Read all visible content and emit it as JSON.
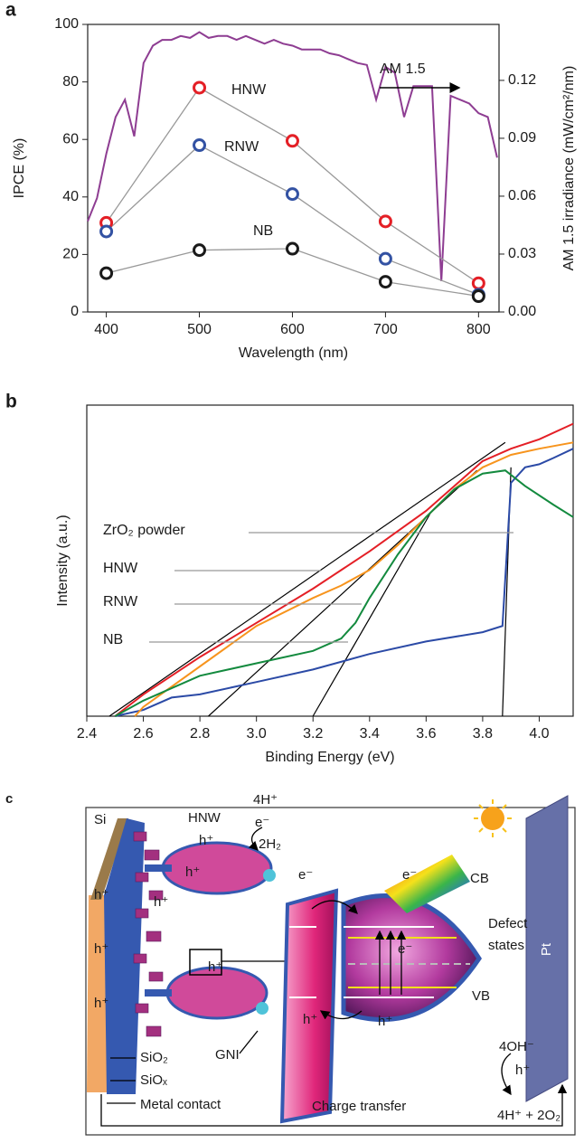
{
  "chart_data": [
    {
      "type": "line",
      "panel_label": "a",
      "x": [
        400,
        500,
        600,
        700,
        800
      ],
      "xlim": [
        380,
        822
      ],
      "xticks": [
        400,
        500,
        600,
        700,
        800
      ],
      "ylim": [
        0,
        100
      ],
      "yticks": [
        0,
        20,
        40,
        60,
        80,
        100
      ],
      "y2lim": [
        0,
        0.149
      ],
      "y2ticks": [
        {
          "value": 0,
          "label": "0.00"
        },
        0.03,
        0.06,
        0.09,
        0.12
      ],
      "xlabel": "Wavelength (nm)",
      "ylabel": "IPCE (%)",
      "y2label": "AM 1.5 irradiance (mW/cm²/nm)",
      "connector_color": "#999999",
      "series": [
        {
          "name": "AM 1.5",
          "color": "#8e3d92",
          "axis": "y2",
          "marker": "none",
          "x": [
            380,
            390,
            400,
            410,
            420,
            430,
            440,
            450,
            460,
            470,
            480,
            490,
            500,
            510,
            520,
            530,
            540,
            550,
            560,
            570,
            580,
            590,
            600,
            610,
            620,
            630,
            640,
            650,
            660,
            670,
            680,
            690,
            700,
            710,
            720,
            730,
            740,
            750,
            760,
            770,
            780,
            790,
            800,
            810,
            820
          ],
          "values": [
            0.047,
            0.059,
            0.082,
            0.101,
            0.11,
            0.091,
            0.129,
            0.138,
            0.141,
            0.141,
            0.143,
            0.142,
            0.145,
            0.142,
            0.143,
            0.143,
            0.141,
            0.143,
            0.141,
            0.139,
            0.141,
            0.139,
            0.138,
            0.136,
            0.136,
            0.136,
            0.134,
            0.133,
            0.131,
            0.129,
            0.128,
            0.11,
            0.127,
            0.124,
            0.101,
            0.117,
            0.117,
            0.117,
            0.016,
            0.112,
            0.11,
            0.108,
            0.103,
            0.101,
            0.08
          ]
        },
        {
          "name": "HNW",
          "color": "#e41f26",
          "marker": "circle",
          "values": [
            31,
            78,
            59.5,
            31.5,
            10
          ]
        },
        {
          "name": "RNW",
          "color": "#3352a3",
          "marker": "circle",
          "values": [
            28,
            58,
            41,
            18.5,
            6
          ]
        },
        {
          "name": "NB",
          "color": "#1a1a1a",
          "marker": "circle",
          "values": [
            13.5,
            21.5,
            22,
            10.5,
            5.5
          ]
        }
      ]
    },
    {
      "type": "line",
      "panel_label": "b",
      "xlim": [
        2.4,
        4.12
      ],
      "xticks": [
        2.4,
        2.6,
        2.8,
        {
          "value": 3,
          "label": "3.0"
        },
        3.2,
        3.4,
        3.6,
        3.8,
        {
          "value": 4,
          "label": "4.0"
        }
      ],
      "ylim": [
        0,
        100
      ],
      "xlabel": "Binding Energy (eV)",
      "ylabel": "Intensity (a.u.)",
      "series": [
        {
          "name": "ZrO₂ powder",
          "color": "#2b4aa6",
          "x": [
            2.5,
            2.6,
            2.7,
            2.8,
            3.0,
            3.2,
            3.4,
            3.6,
            3.8,
            3.87,
            3.9,
            3.95,
            4.0,
            4.05,
            4.12
          ],
          "values": [
            0,
            2,
            6,
            7,
            11,
            15,
            20,
            24,
            27,
            29,
            75,
            80,
            81,
            83,
            86
          ]
        },
        {
          "name": "HNW",
          "color": "#e41f26",
          "x": [
            2.5,
            2.6,
            2.8,
            3.0,
            3.2,
            3.4,
            3.6,
            3.8,
            3.9,
            4.0,
            4.12
          ],
          "values": [
            0,
            7,
            19,
            30,
            41,
            53,
            66,
            82,
            86,
            89,
            94
          ]
        },
        {
          "name": "RNW",
          "color": "#f7941d",
          "x": [
            2.57,
            2.6,
            2.8,
            3.0,
            3.2,
            3.3,
            3.4,
            3.5,
            3.6,
            3.7,
            3.8,
            3.9,
            4.0,
            4.12
          ],
          "values": [
            0,
            3,
            16,
            29,
            38,
            42,
            47,
            55,
            64,
            73,
            80,
            84,
            86,
            88
          ]
        },
        {
          "name": "NB",
          "color": "#138a3e",
          "x": [
            2.5,
            2.6,
            2.8,
            3.0,
            3.2,
            3.3,
            3.35,
            3.4,
            3.5,
            3.6,
            3.7,
            3.8,
            3.88,
            3.95,
            4.05,
            4.12
          ],
          "values": [
            0,
            5,
            13,
            17,
            21,
            25,
            30,
            38,
            52,
            64,
            73,
            78,
            79,
            74,
            68,
            64
          ]
        }
      ],
      "tangent_color": "#000000",
      "tangents": [
        {
          "x": [
            2.48,
            3.88
          ],
          "values": [
            0,
            88
          ]
        },
        {
          "x": [
            2.83,
            3.78
          ],
          "values": [
            0,
            79
          ]
        },
        {
          "x": [
            3.2,
            3.62
          ],
          "values": [
            0,
            66
          ]
        },
        {
          "x": [
            3.87,
            3.9
          ],
          "values": [
            0,
            80
          ]
        }
      ]
    }
  ],
  "diagram": {
    "panel_label": "c",
    "labels": {
      "si": "Si",
      "hnw": "HNW",
      "proton": "4H⁺",
      "electron": "e⁻",
      "hydrogen": "2H₂",
      "hole": "h⁺",
      "cb": "CB",
      "defect_states": [
        "Defect",
        "states"
      ],
      "vb": "VB",
      "pt": "Pt",
      "hydroxide": "4OH⁻",
      "products": "4H⁺ + 2O₂",
      "sio2": "SiO₂",
      "siox": "SiOₓ",
      "gni": "GNI",
      "metal_contact": "Metal contact",
      "charge_transfer": "Charge transfer"
    }
  }
}
